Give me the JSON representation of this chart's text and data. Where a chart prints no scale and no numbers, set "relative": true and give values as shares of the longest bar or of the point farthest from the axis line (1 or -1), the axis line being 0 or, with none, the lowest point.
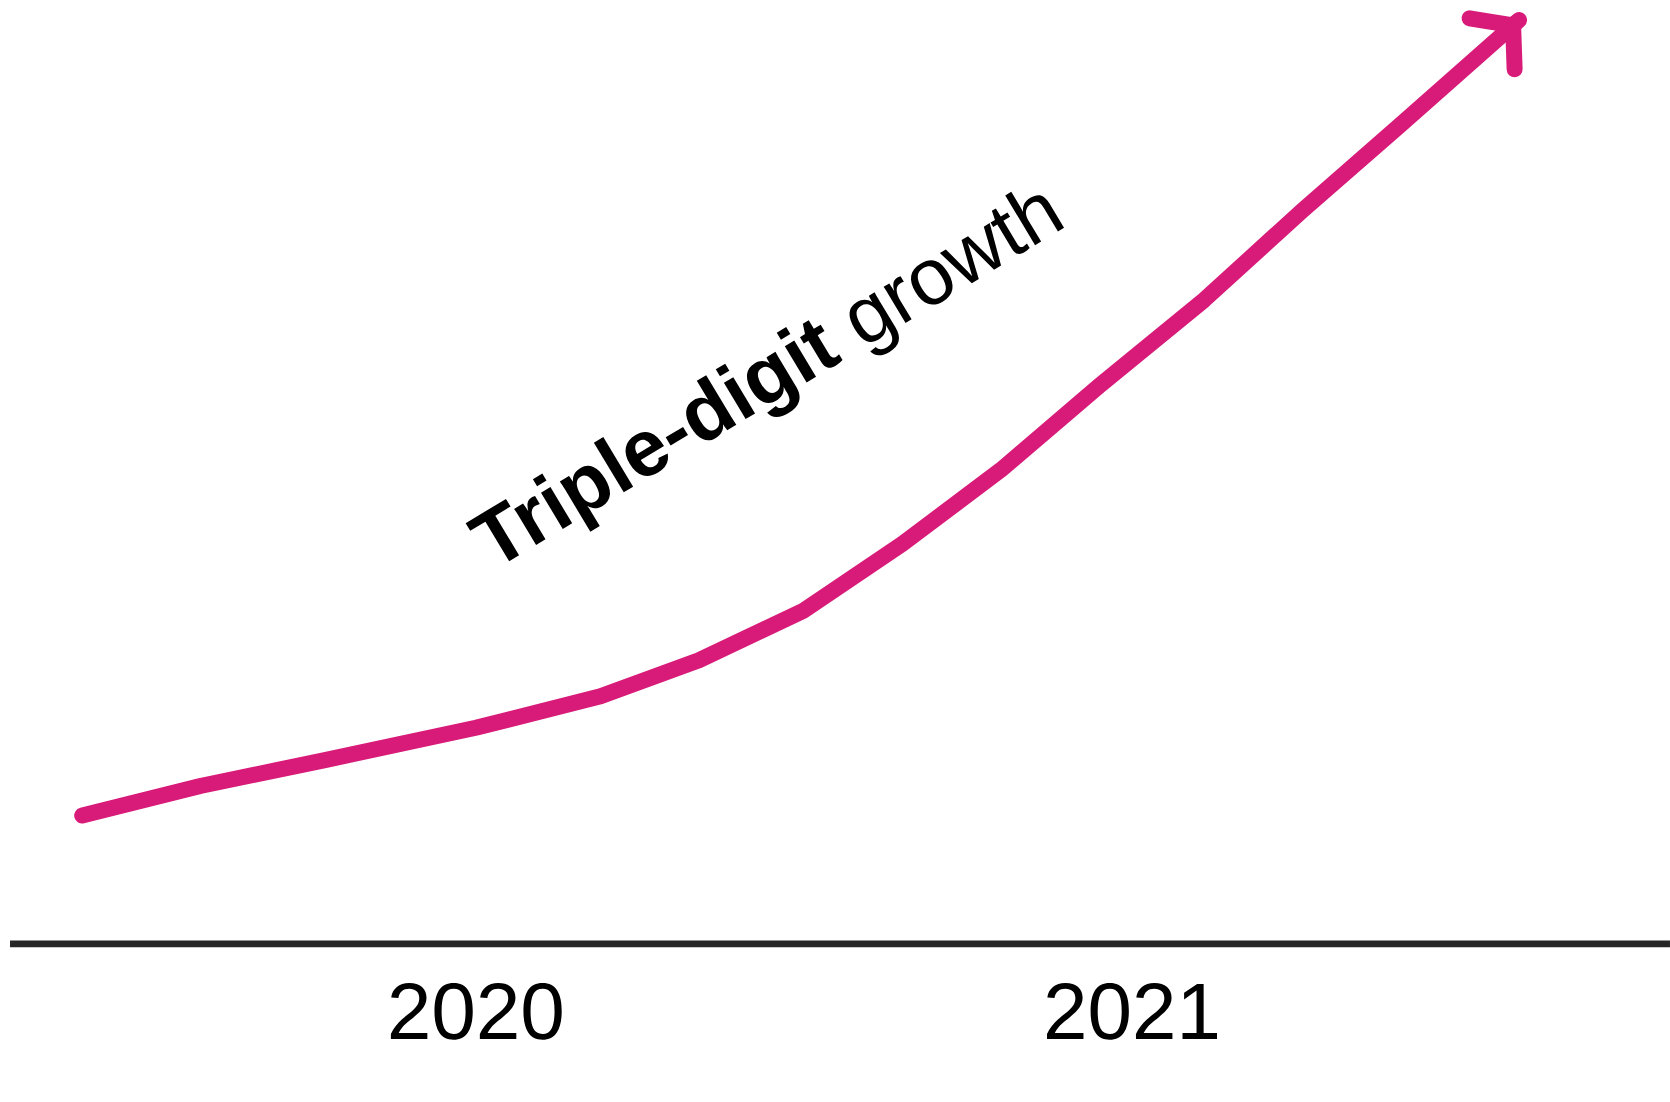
{
  "chart_data": {
    "type": "line",
    "relative": true,
    "annotations": [
      "**Triple-digit** growth"
    ],
    "x": [
      2019.4,
      2019.58,
      2019.77,
      2020.0,
      2020.19,
      2020.34,
      2020.5,
      2020.65,
      2020.8,
      2020.95,
      2021.11,
      2021.26,
      2021.41,
      2021.59
    ],
    "xlim": [
      2019.29,
      2021.82
    ],
    "xticks": [
      {
        "value": 2020,
        "label": "2020"
      },
      {
        "value": 2021,
        "label": "2021"
      }
    ],
    "series": [
      {
        "color": "#d81b78",
        "values": [
          0.139,
          0.171,
          0.199,
          0.234,
          0.268,
          0.307,
          0.361,
          0.433,
          0.513,
          0.604,
          0.697,
          0.794,
          0.887,
          1
        ]
      }
    ],
    "marker": "none",
    "line_style": "solid",
    "grid": false
  }
}
